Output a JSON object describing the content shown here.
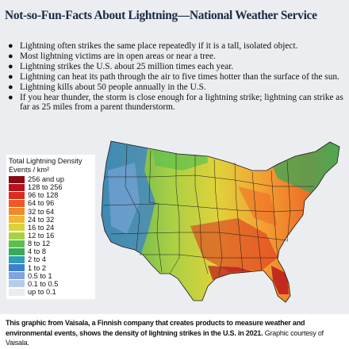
{
  "title": "Not-so-Fun-Facts About Lightning—National Weather Service",
  "facts": [
    "Lightning often strikes the same place repeatedly if it is a tall, isolated object.",
    "Most lightning victims are in open areas or near a tree.",
    "Lightning strikes the U.S. about 25 million times each year.",
    "Lightning can heat its path through the air to five times hotter than the surface of the sun.",
    "Lightning kills about 50 people annually in the U.S.",
    "If you hear thunder, the storm is close enough for a lightning strike; lightning can strike as far as 25 miles from a parent thunderstorm."
  ],
  "bullet_symbol": "●",
  "legend": {
    "title_line1": "Total Lightning Density",
    "title_line2": "Events / km²",
    "items": [
      {
        "label": "256 and up",
        "color": "#8a0a12"
      },
      {
        "label": "128 to 256",
        "color": "#b8121c"
      },
      {
        "label": "96 to 128",
        "color": "#dc2a1e"
      },
      {
        "label": "64 to 96",
        "color": "#ee5a22"
      },
      {
        "label": "32 to 64",
        "color": "#f08a2c"
      },
      {
        "label": "24 to 32",
        "color": "#f2b634"
      },
      {
        "label": "16 to 24",
        "color": "#d9d23a"
      },
      {
        "label": "12 to 16",
        "color": "#a9d045"
      },
      {
        "label": "8 to 12",
        "color": "#5cc04e"
      },
      {
        "label": "4 to 8",
        "color": "#3aa858"
      },
      {
        "label": "2 to 4",
        "color": "#2e9fb4"
      },
      {
        "label": "1 to 2",
        "color": "#3d7fd0"
      },
      {
        "label": "0.5 to 1",
        "color": "#7fa6dc"
      },
      {
        "label": "0.1 to 0.5",
        "color": "#b8cbe8"
      },
      {
        "label": "up to 0.1",
        "color": "#e9ecf3"
      }
    ]
  },
  "caption": {
    "bold": "This graphic from Vaisala, a Finnish company that creates products to measure weather and environmental events, shows the density of lightning strikes in the U.S. in 2021.",
    "regular": " Graphic courtesy of Vaisala."
  }
}
